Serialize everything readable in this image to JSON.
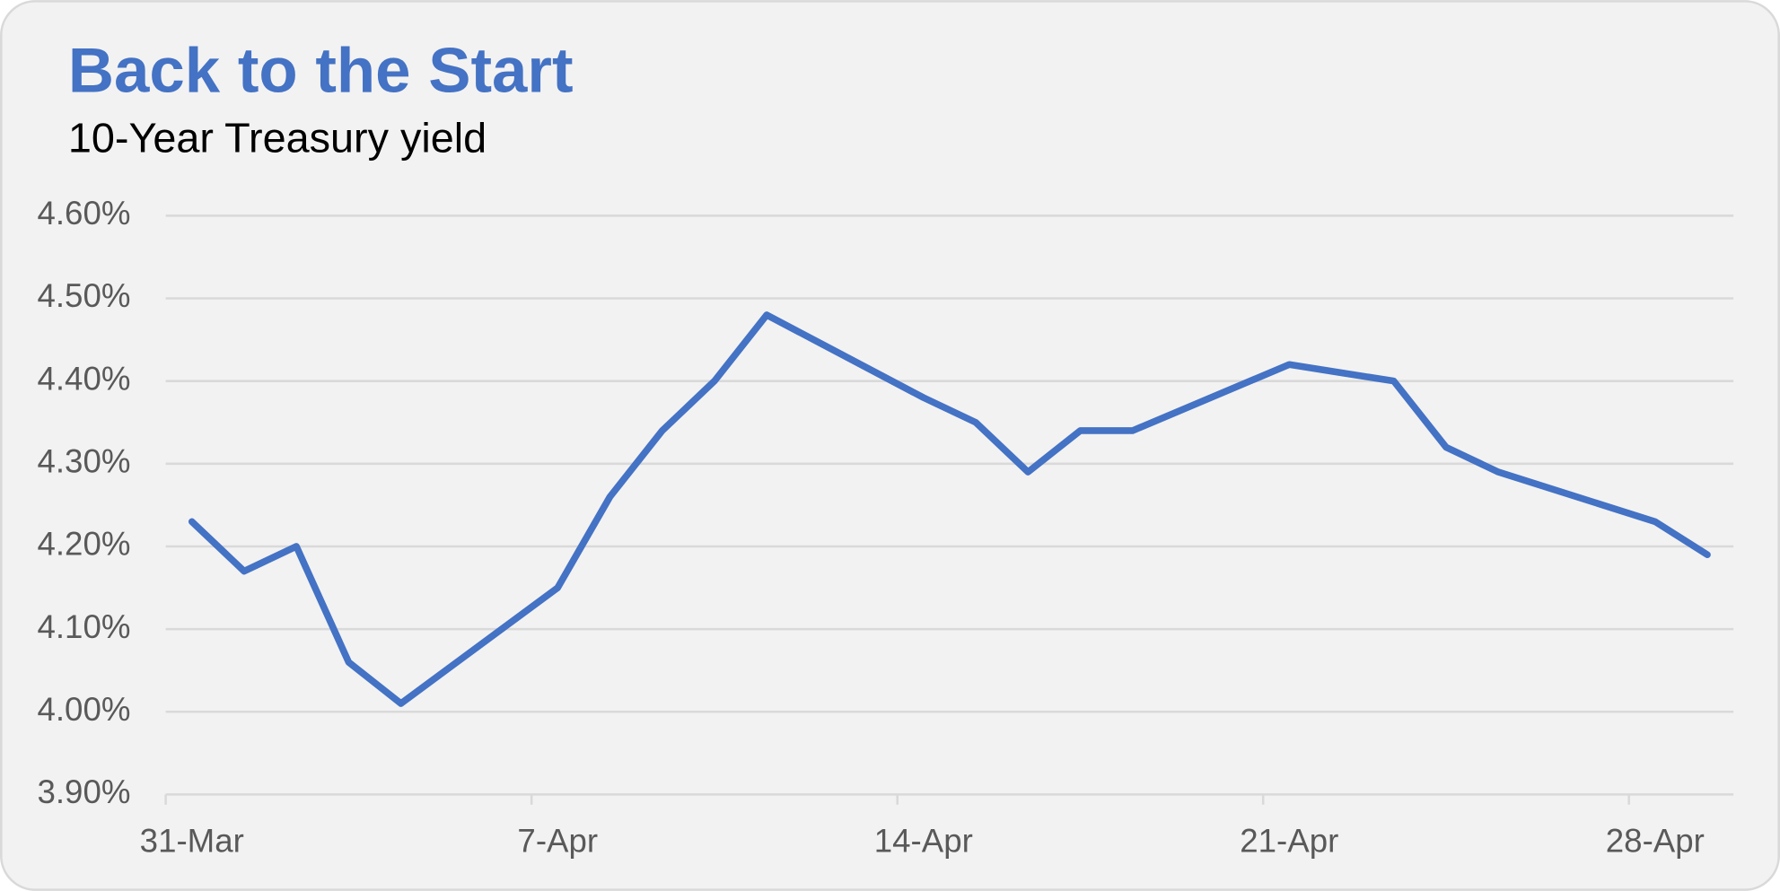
{
  "chart_data": {
    "type": "line",
    "title": "Back to the Start",
    "subtitle": "10-Year Treasury yield",
    "x": [
      "31-Mar",
      "1-Apr",
      "2-Apr",
      "3-Apr",
      "4-Apr",
      "7-Apr",
      "8-Apr",
      "9-Apr",
      "10-Apr",
      "11-Apr",
      "14-Apr",
      "15-Apr",
      "16-Apr",
      "17-Apr",
      "18-Apr",
      "21-Apr",
      "22-Apr",
      "23-Apr",
      "24-Apr",
      "25-Apr",
      "28-Apr",
      "29-Apr"
    ],
    "values": [
      4.23,
      4.17,
      4.2,
      4.06,
      4.01,
      4.15,
      4.26,
      4.34,
      4.4,
      4.48,
      4.38,
      4.35,
      4.29,
      4.34,
      4.34,
      4.42,
      4.41,
      4.4,
      4.32,
      4.29,
      4.23,
      4.19
    ],
    "color": "#4472c4",
    "xlim": [
      "31-Mar",
      "29-Apr"
    ],
    "xticks": [
      "31-Mar",
      "7-Apr",
      "14-Apr",
      "21-Apr",
      "28-Apr"
    ],
    "ylim": [
      3.9,
      4.6
    ],
    "yticks": [
      {
        "value": 3.9,
        "label": "3.90%"
      },
      {
        "value": 4.0,
        "label": "4.00%"
      },
      {
        "value": 4.1,
        "label": "4.10%"
      },
      {
        "value": 4.2,
        "label": "4.20%"
      },
      {
        "value": 4.3,
        "label": "4.30%"
      },
      {
        "value": 4.4,
        "label": "4.40%"
      },
      {
        "value": 4.5,
        "label": "4.50%"
      },
      {
        "value": 4.6,
        "label": "4.60%"
      }
    ],
    "grid": true
  }
}
